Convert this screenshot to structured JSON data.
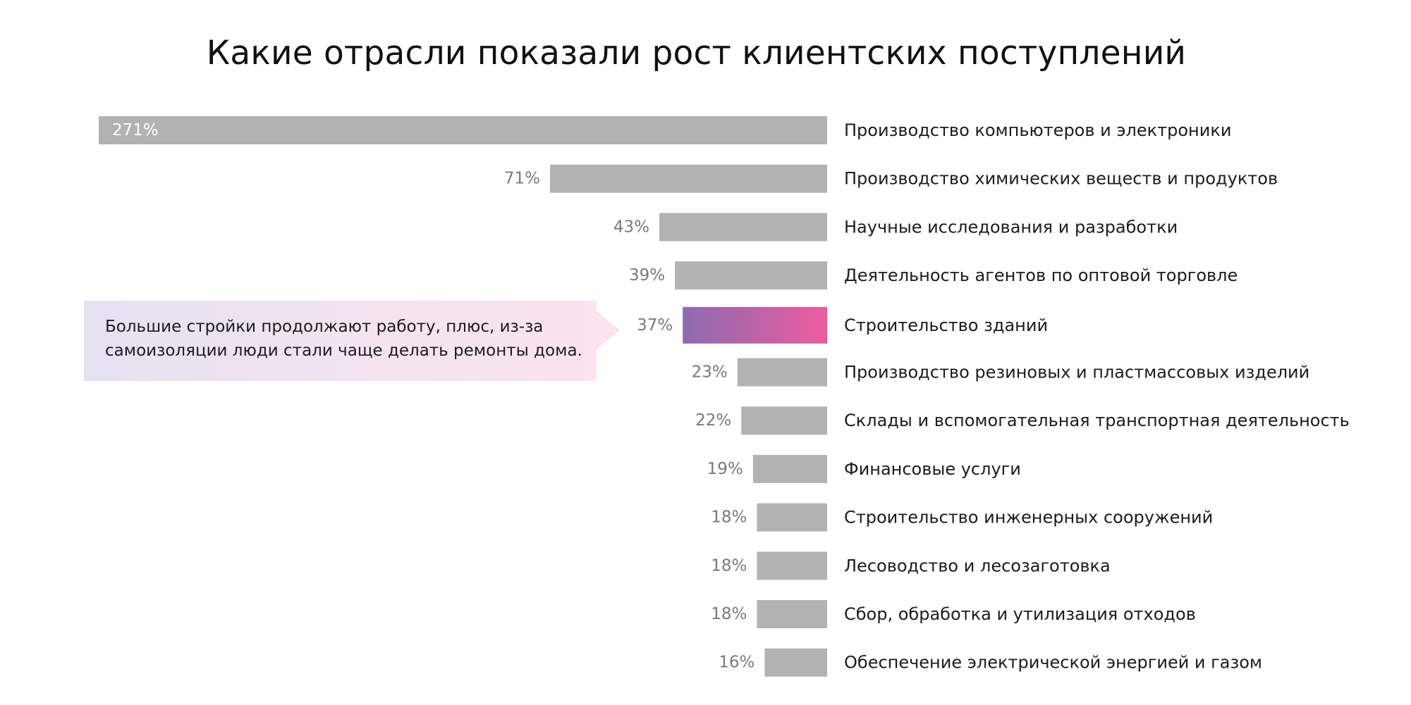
{
  "chart_data": {
    "type": "bar",
    "orientation": "horizontal",
    "title": "Какие отрасли показали рост клиентских поступлений",
    "categories": [
      "Производство компьютеров и электроники",
      "Производство химических веществ и продуктов",
      "Научные исследования и разработки",
      "Деятельность агентов по оптовой торговле",
      "Строительство зданий",
      "Производство резиновых и пластмассовых изделий",
      "Склады и вспомогательная транспортная деятельность",
      "Финансовые услуги",
      "Строительство инженерных сооружений",
      "Лесоводство и лесозаготовка",
      "Сбор, обработка и утилизация отходов",
      "Обеспечение электрической энергией и газом"
    ],
    "values": [
      271,
      71,
      43,
      39,
      37,
      23,
      22,
      19,
      18,
      18,
      18,
      16
    ],
    "value_labels": [
      "271%",
      "71%",
      "43%",
      "39%",
      "37%",
      "23%",
      "22%",
      "19%",
      "18%",
      "18%",
      "18%",
      "16%"
    ],
    "highlight_index": 4,
    "colors": {
      "bar": "#b2b2b2",
      "highlight_start": "#8c6bb0",
      "highlight_end": "#ee5b9f"
    },
    "annotation": {
      "category_index": 4,
      "lines": [
        "Большие стройки продолжают работу, плюс, из-за",
        "самоизоляции люди стали чаще делать ремонты дома."
      ]
    }
  }
}
